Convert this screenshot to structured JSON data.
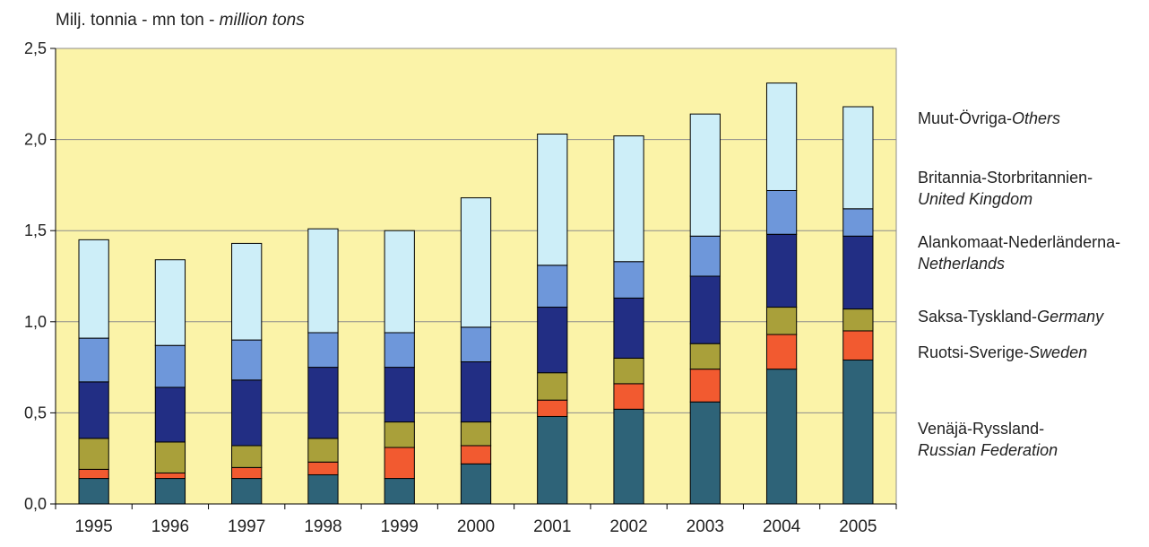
{
  "chart_data": {
    "type": "bar",
    "stacked": true,
    "ylabel": {
      "prefix": "Milj. tonnia - mn ton - ",
      "italic": "million tons"
    },
    "categories": [
      "1995",
      "1996",
      "1997",
      "1998",
      "1999",
      "2000",
      "2001",
      "2002",
      "2003",
      "2004",
      "2005"
    ],
    "ylim": [
      0,
      2.5
    ],
    "yticks": [
      0,
      0.5,
      1.0,
      1.5,
      2.0,
      2.5
    ],
    "ytick_labels": [
      "0,0",
      "0,5",
      "1,0",
      "1,5",
      "2,0",
      "2,5"
    ],
    "grid": true,
    "legend_position": "right",
    "colors": {
      "plot_background": "#FBF3A8",
      "gridline": "#8C8C8C",
      "bar_outline": "#000000"
    },
    "series": [
      {
        "name": "Venäjä-Ryssland-",
        "name_italic": "Russian Federation",
        "color": "#2E6378",
        "values": [
          0.14,
          0.14,
          0.14,
          0.16,
          0.14,
          0.22,
          0.48,
          0.52,
          0.56,
          0.74,
          0.79
        ]
      },
      {
        "name": "Ruotsi-Sverige-",
        "name_italic": "Sweden",
        "color": "#F25A30",
        "values": [
          0.05,
          0.03,
          0.06,
          0.07,
          0.17,
          0.1,
          0.09,
          0.14,
          0.18,
          0.19,
          0.16
        ]
      },
      {
        "name": "Saksa-Tyskland-",
        "name_italic": "Germany",
        "color": "#A9A03A",
        "values": [
          0.17,
          0.17,
          0.12,
          0.13,
          0.14,
          0.13,
          0.15,
          0.14,
          0.14,
          0.15,
          0.12
        ]
      },
      {
        "name": "Alankomaat-Nederländerna-",
        "name_italic": "Netherlands",
        "color": "#222E84",
        "values": [
          0.31,
          0.3,
          0.36,
          0.39,
          0.3,
          0.33,
          0.36,
          0.33,
          0.37,
          0.4,
          0.4
        ]
      },
      {
        "name": "Britannia-Storbritannien-",
        "name_italic": "United Kingdom",
        "color": "#6E97DA",
        "values": [
          0.24,
          0.23,
          0.22,
          0.19,
          0.19,
          0.19,
          0.23,
          0.2,
          0.22,
          0.24,
          0.15
        ]
      },
      {
        "name": "Muut-Övriga-",
        "name_italic": "Others",
        "color": "#CDEEF8",
        "values": [
          0.54,
          0.47,
          0.53,
          0.57,
          0.56,
          0.71,
          0.72,
          0.69,
          0.67,
          0.59,
          0.56
        ]
      }
    ]
  }
}
